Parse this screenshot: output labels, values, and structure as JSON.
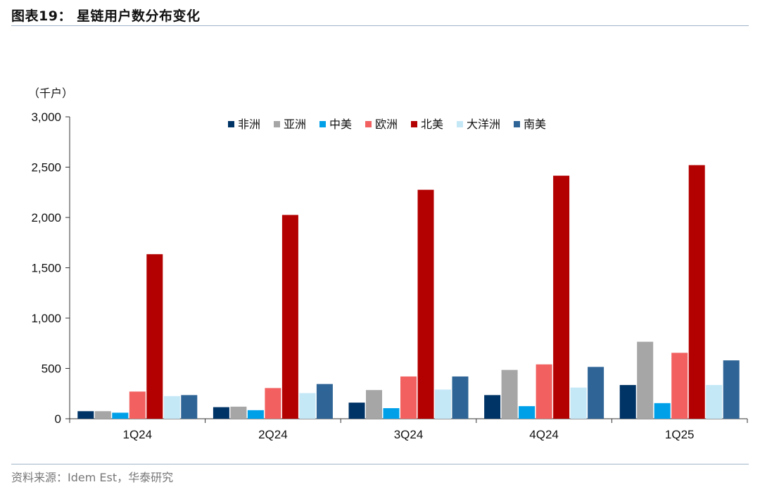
{
  "title": "图表19：  星链用户数分布变化",
  "source": "资料来源：Idem Est，华泰研究",
  "chart_data": {
    "type": "bar",
    "title": "图表19：  星链用户数分布变化",
    "ylabel": "（千户）",
    "ylim": [
      0,
      3000
    ],
    "yticks": [
      0,
      500,
      1000,
      1500,
      2000,
      2500,
      3000
    ],
    "ytick_labels": [
      "0",
      "500",
      "1,000",
      "1,500",
      "2,000",
      "2,500",
      "3,000"
    ],
    "categories": [
      "1Q24",
      "2Q24",
      "3Q24",
      "4Q24",
      "1Q25"
    ],
    "legend_position": "top-center",
    "grid": false,
    "series": [
      {
        "name": "非洲",
        "color": "#003366",
        "values": [
          75,
          115,
          160,
          235,
          335
        ]
      },
      {
        "name": "亚洲",
        "color": "#a6a6a6",
        "values": [
          75,
          120,
          285,
          485,
          765
        ]
      },
      {
        "name": "中美",
        "color": "#00a0e9",
        "values": [
          60,
          85,
          105,
          125,
          155
        ]
      },
      {
        "name": "欧洲",
        "color": "#f26060",
        "values": [
          270,
          305,
          420,
          540,
          655
        ]
      },
      {
        "name": "北美",
        "color": "#b30000",
        "values": [
          1635,
          2025,
          2275,
          2415,
          2520
        ]
      },
      {
        "name": "大洋洲",
        "color": "#c5e8f7",
        "values": [
          225,
          255,
          290,
          310,
          335
        ]
      },
      {
        "name": "南美",
        "color": "#2e6496",
        "values": [
          235,
          345,
          420,
          515,
          580
        ]
      }
    ]
  }
}
